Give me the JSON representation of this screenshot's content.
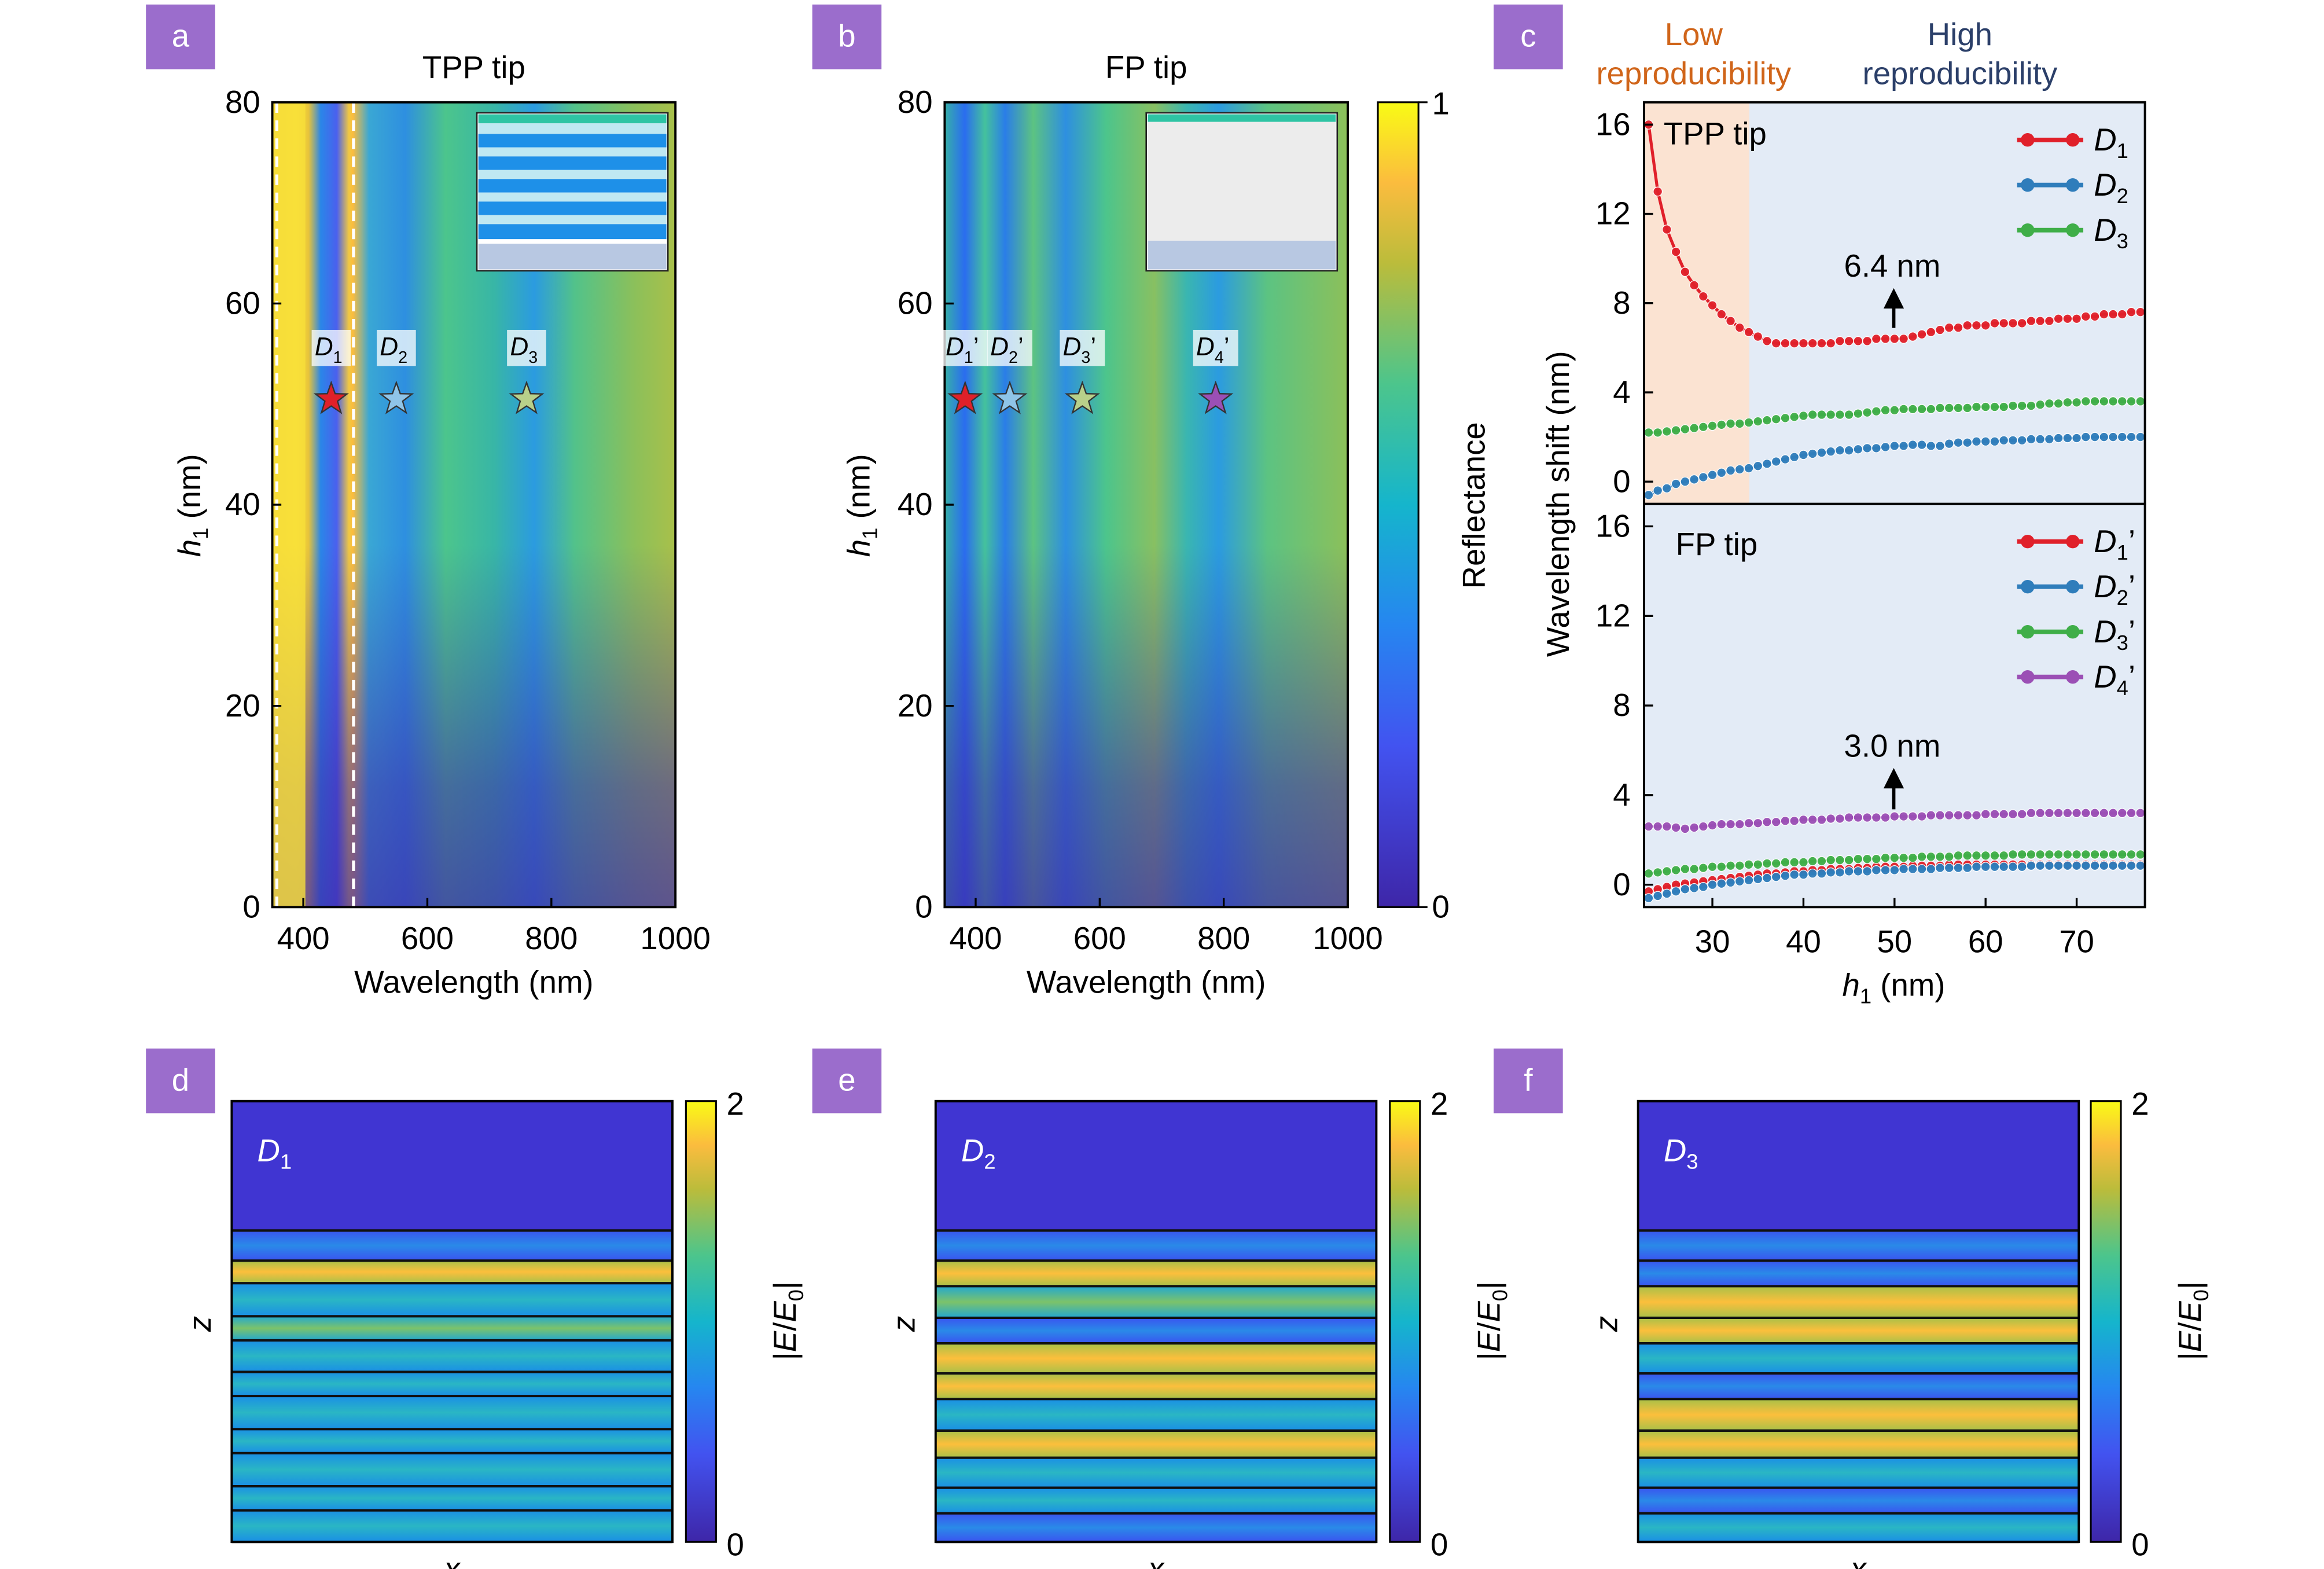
{
  "colors": {
    "badge": "#9b6dcc",
    "red": "#e0202a",
    "blue": "#2f7dbb",
    "green": "#3fae48",
    "purple": "#9b4fb5",
    "low_bg": "#fbe3d2",
    "high_bg": "#e3ebf6",
    "low_text": "#d0651a",
    "high_text": "#2b3f69"
  },
  "panels": {
    "a": {
      "badge": "a",
      "title": "TPP tip",
      "xlabel": "Wavelength (nm)",
      "ylabel_main": "h",
      "ylabel_sub": "1",
      "ylabel_unit": " (nm)",
      "xticks": [
        "400",
        "600",
        "800",
        "1000"
      ],
      "yticks": [
        "0",
        "20",
        "40",
        "60",
        "80"
      ],
      "stars": [
        {
          "main": "D",
          "sub": "1",
          "sup": ""
        },
        {
          "main": "D",
          "sub": "2",
          "sup": ""
        },
        {
          "main": "D",
          "sub": "3",
          "sup": ""
        }
      ]
    },
    "b": {
      "badge": "b",
      "title": "FP tip",
      "xlabel": "Wavelength (nm)",
      "ylabel_main": "h",
      "ylabel_sub": "1",
      "ylabel_unit": " (nm)",
      "xticks": [
        "400",
        "600",
        "800",
        "1000"
      ],
      "yticks": [
        "0",
        "20",
        "40",
        "60",
        "80"
      ],
      "stars": [
        {
          "main": "D",
          "sub": "1",
          "sup": "’"
        },
        {
          "main": "D",
          "sub": "2",
          "sup": "’"
        },
        {
          "main": "D",
          "sub": "3",
          "sup": "’"
        },
        {
          "main": "D",
          "sub": "4",
          "sup": "’"
        }
      ],
      "colorbar": {
        "label": "Reflectance",
        "max": "1",
        "min": "0"
      }
    },
    "c": {
      "badge": "c",
      "low_label_1": "Low",
      "low_label_2": "reproducibility",
      "high_label_1": "High",
      "high_label_2": "reproducibility",
      "ylabel": "Wavelength shift (nm)",
      "xlabel_main": "h",
      "xlabel_sub": "1",
      "xlabel_unit": " (nm)",
      "xticks": [
        "30",
        "40",
        "50",
        "60",
        "70"
      ],
      "yticks": [
        "0",
        "4",
        "8",
        "12",
        "16"
      ],
      "top": {
        "label": "TPP tip",
        "annotation": "6.4 nm",
        "legend": [
          {
            "main": "D",
            "sub": "1",
            "sup": ""
          },
          {
            "main": "D",
            "sub": "2",
            "sup": ""
          },
          {
            "main": "D",
            "sub": "3",
            "sup": ""
          }
        ]
      },
      "bottom": {
        "label": "FP tip",
        "annotation": "3.0 nm",
        "legend": [
          {
            "main": "D",
            "sub": "1",
            "sup": "’"
          },
          {
            "main": "D",
            "sub": "2",
            "sup": "’"
          },
          {
            "main": "D",
            "sub": "3",
            "sup": "’"
          },
          {
            "main": "D",
            "sub": "4",
            "sup": "’"
          }
        ]
      }
    },
    "d": {
      "badge": "d",
      "mode_main": "D",
      "mode_sub": "1",
      "xlabel": "x",
      "ylabel": "z",
      "cb_max": "2",
      "cb_min": "0",
      "cb_label_1": "|",
      "cb_label_2": "E",
      "cb_label_3": "/",
      "cb_label_4": "E",
      "cb_label_5": "0",
      "cb_label_6": "|"
    },
    "e": {
      "badge": "e",
      "mode_main": "D",
      "mode_sub": "2",
      "xlabel": "x",
      "ylabel": "z",
      "cb_max": "2",
      "cb_min": "0",
      "cb_label_1": "|",
      "cb_label_2": "E",
      "cb_label_3": "/",
      "cb_label_4": "E",
      "cb_label_5": "0",
      "cb_label_6": "|"
    },
    "f": {
      "badge": "f",
      "mode_main": "D",
      "mode_sub": "3",
      "xlabel": "x",
      "ylabel": "z",
      "cb_max": "2",
      "cb_min": "0",
      "cb_label_1": "|",
      "cb_label_2": "E",
      "cb_label_3": "/",
      "cb_label_4": "E",
      "cb_label_5": "0",
      "cb_label_6": "|"
    }
  },
  "chart_data": [
    {
      "type": "heatmap",
      "panel": "a",
      "title": "TPP tip",
      "xlabel": "Wavelength (nm)",
      "ylabel": "h1 (nm)",
      "xlim": [
        350,
        1000
      ],
      "ylim": [
        0,
        80
      ],
      "markers": [
        {
          "label": "D1",
          "x": 445,
          "y": 50.5,
          "color": "#e0202a"
        },
        {
          "label": "D2",
          "x": 550,
          "y": 50.5,
          "color": "#8fc4e8"
        },
        {
          "label": "D3",
          "x": 760,
          "y": 50.5,
          "color": "#b8d08a"
        }
      ],
      "dashed_lines_x": [
        357,
        485
      ]
    },
    {
      "type": "heatmap",
      "panel": "b",
      "title": "FP tip",
      "xlabel": "Wavelength (nm)",
      "ylabel": "h1 (nm)",
      "xlim": [
        350,
        1000
      ],
      "ylim": [
        0,
        80
      ],
      "colorbar": {
        "label": "Reflectance",
        "range": [
          0,
          1
        ]
      },
      "markers": [
        {
          "label": "D1'",
          "x": 383,
          "y": 50.5,
          "color": "#e0202a"
        },
        {
          "label": "D2'",
          "x": 455,
          "y": 50.5,
          "color": "#8fc4e8"
        },
        {
          "label": "D3'",
          "x": 572,
          "y": 50.5,
          "color": "#b8d08a"
        },
        {
          "label": "D4'",
          "x": 787,
          "y": 50.5,
          "color": "#9b4fb5"
        }
      ]
    },
    {
      "type": "line",
      "panel": "c-top",
      "label": "TPP tip",
      "xlabel": "h1 (nm)",
      "ylabel": "Wavelength shift (nm)",
      "xlim": [
        22.5,
        77.5
      ],
      "ylim": [
        -1,
        17
      ],
      "shaded": [
        {
          "range": [
            22.5,
            34.5
          ],
          "label": "Low reproducibility"
        },
        {
          "range": [
            34.5,
            77.5
          ],
          "label": "High reproducibility"
        }
      ],
      "x": [
        23,
        24,
        25,
        26,
        27,
        28,
        29,
        30,
        31,
        32,
        33,
        34,
        35,
        36,
        37,
        38,
        39,
        40,
        41,
        42,
        43,
        44,
        45,
        46,
        47,
        48,
        49,
        50,
        51,
        52,
        53,
        54,
        55,
        56,
        57,
        58,
        59,
        60,
        61,
        62,
        63,
        64,
        65,
        66,
        67,
        68,
        69,
        70,
        71,
        72,
        73,
        74,
        75,
        76,
        77
      ],
      "series": [
        {
          "name": "D1",
          "values": [
            16.0,
            13.0,
            11.3,
            10.3,
            9.4,
            8.8,
            8.3,
            7.9,
            7.5,
            7.2,
            6.9,
            6.7,
            6.5,
            6.3,
            6.2,
            6.2,
            6.2,
            6.2,
            6.2,
            6.2,
            6.2,
            6.3,
            6.3,
            6.3,
            6.3,
            6.4,
            6.4,
            6.4,
            6.4,
            6.5,
            6.6,
            6.7,
            6.8,
            6.9,
            6.9,
            7.0,
            7.0,
            7.0,
            7.1,
            7.1,
            7.1,
            7.1,
            7.2,
            7.2,
            7.2,
            7.3,
            7.3,
            7.3,
            7.4,
            7.4,
            7.5,
            7.5,
            7.5,
            7.6,
            7.6
          ]
        },
        {
          "name": "D2",
          "values": [
            -0.6,
            -0.4,
            -0.3,
            -0.1,
            0.0,
            0.1,
            0.2,
            0.3,
            0.4,
            0.5,
            0.55,
            0.6,
            0.7,
            0.8,
            0.9,
            1.0,
            1.1,
            1.2,
            1.25,
            1.3,
            1.35,
            1.4,
            1.4,
            1.45,
            1.5,
            1.5,
            1.55,
            1.6,
            1.6,
            1.65,
            1.65,
            1.6,
            1.6,
            1.7,
            1.75,
            1.75,
            1.8,
            1.8,
            1.8,
            1.85,
            1.85,
            1.85,
            1.9,
            1.9,
            1.9,
            1.95,
            1.95,
            1.95,
            2.0,
            2.0,
            2.0,
            2.0,
            2.0,
            2.0,
            2.0
          ]
        },
        {
          "name": "D3",
          "values": [
            2.2,
            2.2,
            2.25,
            2.3,
            2.35,
            2.4,
            2.45,
            2.5,
            2.55,
            2.6,
            2.6,
            2.65,
            2.7,
            2.75,
            2.8,
            2.85,
            2.9,
            2.95,
            3.0,
            3.0,
            3.0,
            3.0,
            3.0,
            3.05,
            3.1,
            3.15,
            3.2,
            3.2,
            3.25,
            3.25,
            3.25,
            3.25,
            3.3,
            3.3,
            3.3,
            3.3,
            3.35,
            3.35,
            3.35,
            3.35,
            3.4,
            3.4,
            3.4,
            3.45,
            3.5,
            3.5,
            3.55,
            3.55,
            3.6,
            3.6,
            3.6,
            3.6,
            3.6,
            3.6,
            3.6
          ]
        }
      ],
      "annotation": "6.4 nm"
    },
    {
      "type": "line",
      "panel": "c-bottom",
      "label": "FP tip",
      "xlabel": "h1 (nm)",
      "ylabel": "Wavelength shift (nm)",
      "xlim": [
        22.5,
        77.5
      ],
      "ylim": [
        -1,
        17
      ],
      "x": [
        23,
        24,
        25,
        26,
        27,
        28,
        29,
        30,
        31,
        32,
        33,
        34,
        35,
        36,
        37,
        38,
        39,
        40,
        41,
        42,
        43,
        44,
        45,
        46,
        47,
        48,
        49,
        50,
        51,
        52,
        53,
        54,
        55,
        56,
        57,
        58,
        59,
        60,
        61,
        62,
        63,
        64,
        65,
        66,
        67,
        68,
        69,
        70,
        71,
        72,
        73,
        74,
        75,
        76,
        77
      ],
      "series": [
        {
          "name": "D1'",
          "values": [
            -0.3,
            -0.2,
            -0.1,
            0.0,
            0.05,
            0.1,
            0.15,
            0.2,
            0.25,
            0.3,
            0.35,
            0.4,
            0.45,
            0.5,
            0.5,
            0.55,
            0.6,
            0.6,
            0.65,
            0.65,
            0.7,
            0.7,
            0.7,
            0.75,
            0.75,
            0.8,
            0.8,
            0.8,
            0.8,
            0.85,
            0.85,
            0.85,
            0.85,
            0.9,
            0.9,
            0.9,
            0.9,
            0.9,
            0.9,
            0.9,
            0.9,
            0.9,
            0.9,
            0.9,
            0.9,
            0.9,
            0.9,
            0.9,
            0.9,
            0.9,
            0.9,
            0.9,
            0.9,
            0.9,
            0.9
          ]
        },
        {
          "name": "D2'",
          "values": [
            -0.6,
            -0.5,
            -0.4,
            -0.3,
            -0.2,
            -0.15,
            -0.1,
            0.0,
            0.05,
            0.1,
            0.15,
            0.2,
            0.25,
            0.3,
            0.35,
            0.4,
            0.45,
            0.45,
            0.5,
            0.5,
            0.55,
            0.55,
            0.6,
            0.6,
            0.6,
            0.65,
            0.65,
            0.65,
            0.7,
            0.7,
            0.7,
            0.7,
            0.75,
            0.75,
            0.75,
            0.75,
            0.8,
            0.8,
            0.8,
            0.8,
            0.8,
            0.8,
            0.85,
            0.85,
            0.85,
            0.85,
            0.85,
            0.85,
            0.85,
            0.85,
            0.85,
            0.85,
            0.85,
            0.85,
            0.85
          ]
        },
        {
          "name": "D3'",
          "values": [
            0.5,
            0.55,
            0.6,
            0.65,
            0.7,
            0.7,
            0.75,
            0.8,
            0.8,
            0.85,
            0.85,
            0.9,
            0.9,
            0.95,
            0.95,
            1.0,
            1.0,
            1.0,
            1.05,
            1.05,
            1.1,
            1.1,
            1.1,
            1.15,
            1.15,
            1.15,
            1.2,
            1.2,
            1.2,
            1.2,
            1.25,
            1.25,
            1.25,
            1.25,
            1.3,
            1.3,
            1.3,
            1.3,
            1.3,
            1.3,
            1.35,
            1.35,
            1.35,
            1.35,
            1.35,
            1.35,
            1.35,
            1.35,
            1.35,
            1.35,
            1.35,
            1.35,
            1.35,
            1.35,
            1.35
          ]
        },
        {
          "name": "D4'",
          "values": [
            2.6,
            2.6,
            2.6,
            2.55,
            2.5,
            2.55,
            2.6,
            2.65,
            2.7,
            2.7,
            2.7,
            2.75,
            2.75,
            2.8,
            2.8,
            2.85,
            2.85,
            2.9,
            2.9,
            2.9,
            2.95,
            2.95,
            3.0,
            3.0,
            3.0,
            3.0,
            3.0,
            3.05,
            3.05,
            3.05,
            3.05,
            3.1,
            3.1,
            3.1,
            3.1,
            3.1,
            3.1,
            3.15,
            3.15,
            3.15,
            3.15,
            3.15,
            3.2,
            3.2,
            3.2,
            3.2,
            3.2,
            3.2,
            3.2,
            3.2,
            3.2,
            3.2,
            3.2,
            3.2,
            3.2
          ]
        }
      ],
      "annotation": "3.0 nm"
    },
    {
      "type": "heatmap",
      "panel": "d",
      "label": "D1",
      "xlabel": "x",
      "ylabel": "z",
      "colorbar": {
        "label": "|E/E0|",
        "range": [
          0,
          2
        ]
      }
    },
    {
      "type": "heatmap",
      "panel": "e",
      "label": "D2",
      "xlabel": "x",
      "ylabel": "z",
      "colorbar": {
        "label": "|E/E0|",
        "range": [
          0,
          2
        ]
      }
    },
    {
      "type": "heatmap",
      "panel": "f",
      "label": "D3",
      "xlabel": "x",
      "ylabel": "z",
      "colorbar": {
        "label": "|E/E0|",
        "range": [
          0,
          2
        ]
      }
    }
  ]
}
